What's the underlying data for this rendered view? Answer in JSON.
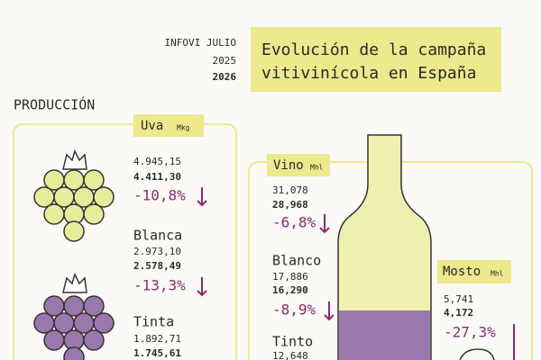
{
  "header": {
    "source": "INFOVI JULIO",
    "year_previous": "2025",
    "year_current": "2026",
    "title_lines": [
      "Evolución de la campaña",
      "vitivinícola en España"
    ]
  },
  "section": "PRODUCCIÓN",
  "uva": {
    "label": "Uva",
    "unit": "Mkg",
    "total": {
      "prev": "4.945,15",
      "curr": "4.411,30",
      "change": "-10,8%"
    },
    "blanca": {
      "name": "Blanca",
      "prev": "2.973,10",
      "curr": "2.578,49",
      "change": "-13,3%"
    },
    "tinta": {
      "name": "Tinta",
      "prev": "1.892,71",
      "curr": "1.745,61"
    }
  },
  "vino": {
    "label": "Vino",
    "unit": "Mhl",
    "total": {
      "prev": "31,078",
      "curr": "28,968",
      "change": "-6,8%"
    },
    "blanco": {
      "name": "Blanco",
      "prev": "17,886",
      "curr": "16,290",
      "change": "-8,9%"
    },
    "tinto": {
      "name": "Tinto",
      "prev": "12,648"
    }
  },
  "mosto": {
    "label": "Mosto",
    "unit": "Mhl",
    "prev": "5,741",
    "curr": "4,172",
    "change": "-27,3%"
  }
}
